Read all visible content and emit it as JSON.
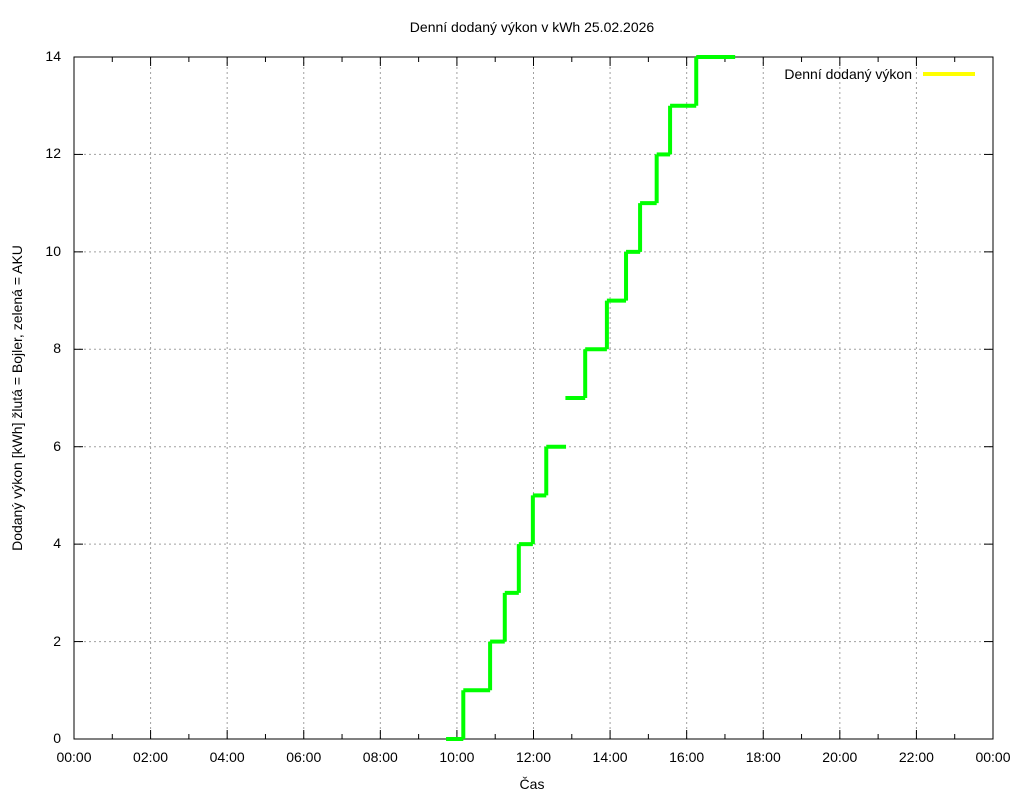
{
  "chart": {
    "title": "Denní dodaný výkon v kWh 25.02.2026",
    "xlabel": "Čas",
    "ylabel": "Dodaný výkon [kWh]  žlutá = Bojler, zelená = AKU",
    "legend_label": "Denní dodaný výkon",
    "legend_color": "#ffff00",
    "line_color": "#00ff00",
    "grid_color": "#a0a0a0",
    "y_ticks": [
      "0",
      "2",
      "4",
      "6",
      "8",
      "10",
      "12",
      "14"
    ],
    "x_ticks": [
      "00:00",
      "02:00",
      "04:00",
      "06:00",
      "08:00",
      "10:00",
      "12:00",
      "14:00",
      "16:00",
      "18:00",
      "20:00",
      "22:00",
      "00:00"
    ]
  },
  "chart_data": {
    "type": "line",
    "title": "Denní dodaný výkon v kWh 25.02.2026",
    "xlabel": "Čas",
    "ylabel": "Dodaný výkon [kWh]  žlutá = Bojler, zelená = AKU",
    "xlim": [
      "00:00",
      "24:00"
    ],
    "ylim": [
      0,
      14
    ],
    "grid": true,
    "legend_position": "top-right",
    "series": [
      {
        "name": "Denní dodaný výkon (AKU, zelená)",
        "color": "#00ff00",
        "step_segments": [
          {
            "from": "09:43",
            "to": "10:10",
            "value": 0
          },
          {
            "from": "10:10",
            "to": "10:52",
            "value": 1
          },
          {
            "from": "10:52",
            "to": "11:15",
            "value": 2
          },
          {
            "from": "11:15",
            "to": "11:37",
            "value": 3
          },
          {
            "from": "11:37",
            "to": "11:59",
            "value": 4
          },
          {
            "from": "11:59",
            "to": "12:20",
            "value": 5
          },
          {
            "from": "12:20",
            "to": "12:51",
            "value": 6
          },
          {
            "from": "12:50",
            "to": "13:21",
            "value": 7
          },
          {
            "from": "13:21",
            "to": "13:55",
            "value": 8
          },
          {
            "from": "13:55",
            "to": "14:25",
            "value": 9
          },
          {
            "from": "14:25",
            "to": "14:47",
            "value": 10
          },
          {
            "from": "14:47",
            "to": "15:13",
            "value": 11
          },
          {
            "from": "15:13",
            "to": "15:34",
            "value": 12
          },
          {
            "from": "15:34",
            "to": "16:15",
            "value": 13
          },
          {
            "from": "16:15",
            "to": "17:16",
            "value": 14
          }
        ]
      },
      {
        "name": "Denní dodaný výkon (Bojler, žlutá)",
        "color": "#ffff00",
        "step_segments": []
      }
    ]
  }
}
